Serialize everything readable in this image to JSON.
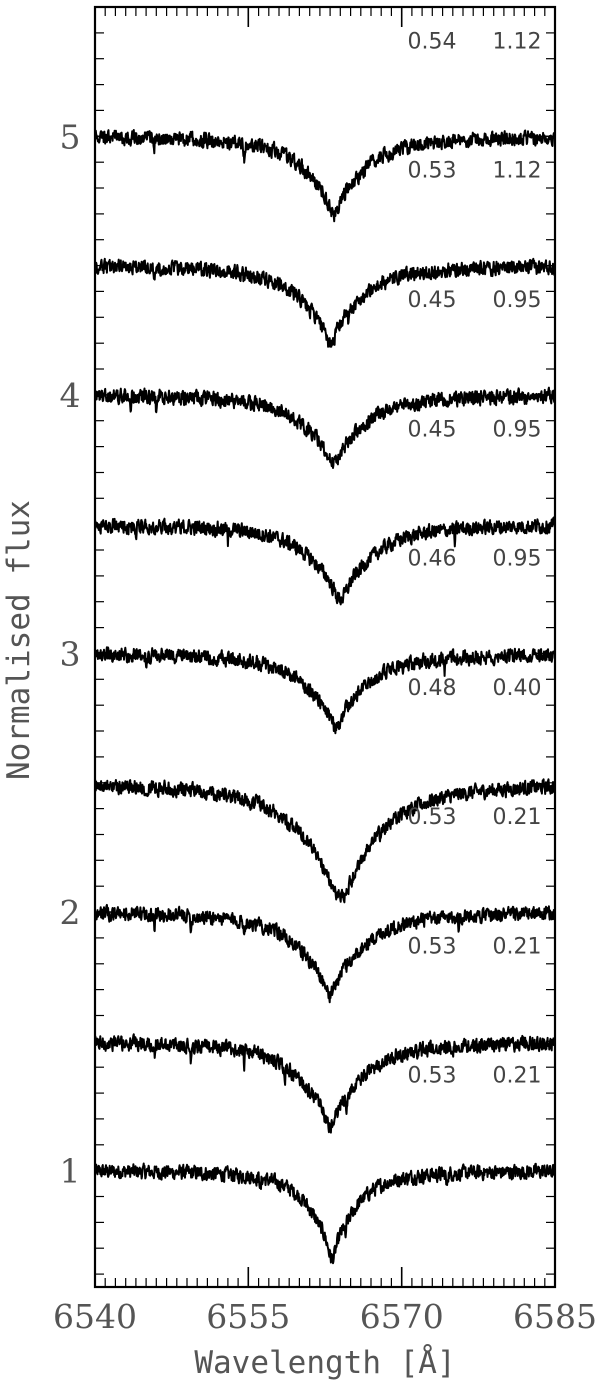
{
  "chart_data": {
    "type": "line",
    "xlabel": "Wavelength [Å]",
    "ylabel": "Normalised flux",
    "xlim": [
      6540,
      6585
    ],
    "ylim": [
      0.55,
      5.5
    ],
    "xticks": [
      6540,
      6555,
      6570,
      6585
    ],
    "xtick_labels": [
      "6540",
      "6555",
      "6570",
      "6585"
    ],
    "yticks": [
      1,
      2,
      3,
      4,
      5
    ],
    "ytick_labels": [
      "1",
      "2",
      "3",
      "4",
      "5"
    ],
    "grid": false,
    "line_color": "#000000",
    "text_color": "#555555",
    "series": [
      {
        "offset": 1.0,
        "annotations": [
          "0.53",
          "0.21"
        ],
        "min_flux": 0.66,
        "min_wavelength": 6563.2,
        "wing_width": 2.5,
        "core_width": 0.35,
        "narrow_lines": [
          6556.2,
          6564.5,
          6574.4
        ]
      },
      {
        "offset": 1.5,
        "annotations": [
          "0.53",
          "0.21"
        ],
        "min_flux": 1.17,
        "min_wavelength": 6563.0,
        "wing_width": 3.5,
        "core_width": 0.5,
        "narrow_lines": [
          6545.8,
          6549.4,
          6554.6,
          6558.6,
          6564.6,
          6575.0
        ]
      },
      {
        "offset": 2.0,
        "annotations": [
          "0.53",
          "0.21"
        ],
        "min_flux": 1.68,
        "min_wavelength": 6563.0,
        "wing_width": 3.5,
        "core_width": 0.5,
        "narrow_lines": [
          6545.8,
          6549.4,
          6554.6,
          6575.6
        ]
      },
      {
        "offset": 2.5,
        "annotations": [
          "0.48",
          "0.40"
        ],
        "min_flux": 2.06,
        "min_wavelength": 6564.0,
        "wing_width": 4.5,
        "core_width": 1.0,
        "narrow_lines": []
      },
      {
        "offset": 3.0,
        "annotations": [
          "0.46",
          "0.95"
        ],
        "min_flux": 2.72,
        "min_wavelength": 6563.5,
        "wing_width": 3.5,
        "core_width": 0.6,
        "narrow_lines": [
          6545.0,
          6574.2
        ]
      },
      {
        "offset": 3.5,
        "annotations": [
          "0.45",
          "0.95"
        ],
        "min_flux": 3.21,
        "min_wavelength": 6564.0,
        "wing_width": 3.5,
        "core_width": 0.6,
        "narrow_lines": [
          6544.0,
          6553.0,
          6575.2
        ]
      },
      {
        "offset": 4.0,
        "annotations": [
          "0.45",
          "0.95"
        ],
        "min_flux": 3.74,
        "min_wavelength": 6563.3,
        "wing_width": 3.5,
        "core_width": 0.6,
        "narrow_lines": [
          6543.5,
          6546.0
        ]
      },
      {
        "offset": 4.5,
        "annotations": [
          "0.53",
          "1.12"
        ],
        "min_flux": 4.2,
        "min_wavelength": 6563.0,
        "wing_width": 3.3,
        "core_width": 0.5,
        "narrow_lines": [
          6545.8,
          6554.6,
          6564.8
        ]
      },
      {
        "offset": 5.0,
        "annotations": [
          "0.54",
          "1.12"
        ],
        "min_flux": 4.7,
        "min_wavelength": 6563.4,
        "wing_width": 3.3,
        "core_width": 0.5,
        "narrow_lines": [
          6545.8,
          6554.6
        ]
      }
    ]
  }
}
